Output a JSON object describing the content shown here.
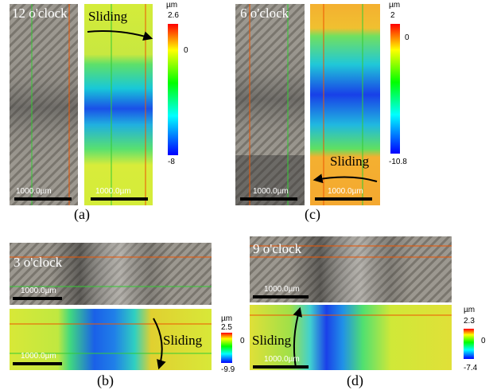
{
  "panels": [
    {
      "caption": "(a)",
      "clock": "12 o'clock",
      "sliding": "Sliding",
      "scale_bars": [
        "1000.0µm",
        "1000.0µm"
      ],
      "colorbar": {
        "unit": "µm",
        "max": "2.6",
        "zero": "0",
        "min": "-8"
      }
    },
    {
      "caption": "(b)",
      "clock": "3 o'clock",
      "sliding": "Sliding",
      "scale_bars": [
        "1000.0µm",
        "1000.0µm"
      ],
      "colorbar": {
        "unit": "µm",
        "max": "2.5",
        "zero": "0",
        "min": "-9.9"
      }
    },
    {
      "caption": "(c)",
      "clock": "6 o'clock",
      "sliding": "Sliding",
      "scale_bars": [
        "1000.0µm",
        "1000.0µm"
      ],
      "colorbar": {
        "unit": "µm",
        "max": "2",
        "zero": "0",
        "min": "-10.8"
      }
    },
    {
      "caption": "(d)",
      "clock": "9 o'clock",
      "sliding": "Sliding",
      "scale_bars": [
        "1000.0µm",
        "1000.0µm"
      ],
      "colorbar": {
        "unit": "µm",
        "max": "2.3",
        "zero": "0",
        "min": "-7.4"
      }
    }
  ]
}
